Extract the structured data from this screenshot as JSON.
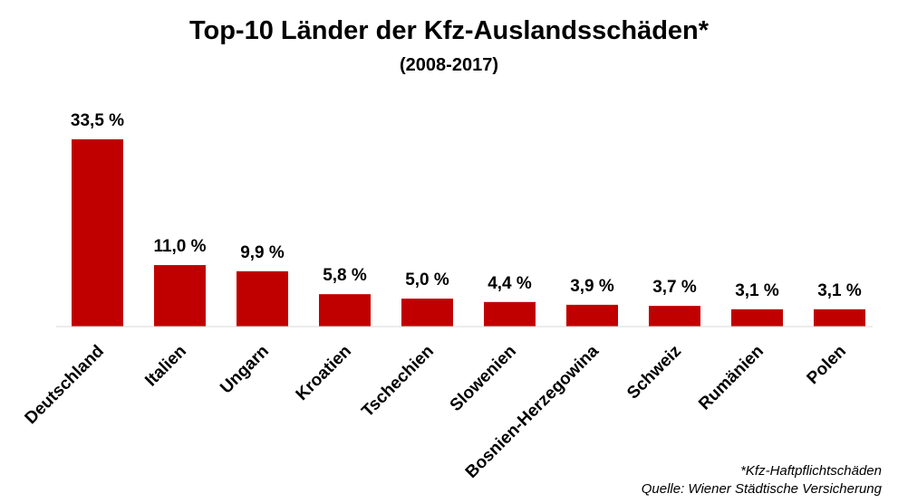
{
  "chart_data": {
    "type": "bar",
    "title": "Top-10 Länder der Kfz-Auslandsschäden*",
    "subtitle": "(2008-2017)",
    "categories": [
      "Deutschland",
      "Italien",
      "Ungarn",
      "Kroatien",
      "Tschechien",
      "Slowenien",
      "Bosnien-Herzegowina",
      "Schweiz",
      "Rumänien",
      "Polen"
    ],
    "values": [
      33.5,
      11.0,
      9.9,
      5.8,
      5.0,
      4.4,
      3.9,
      3.7,
      3.1,
      3.1
    ],
    "value_labels": [
      "33,5 %",
      "11,0 %",
      "9,9 %",
      "5,8 %",
      "5,0 %",
      "4,4 %",
      "3,9 %",
      "3,7 %",
      "3,1 %",
      "3,1 %"
    ],
    "xlabel": "",
    "ylabel": "",
    "ylim": [
      0,
      33.5
    ],
    "grid": false,
    "colors": {
      "bar": "#c00000",
      "axis": "#d9d9d9"
    }
  },
  "footnote": "*Kfz-Haftpflichtschäden",
  "source": "Quelle: Wiener Städtische Versicherung"
}
